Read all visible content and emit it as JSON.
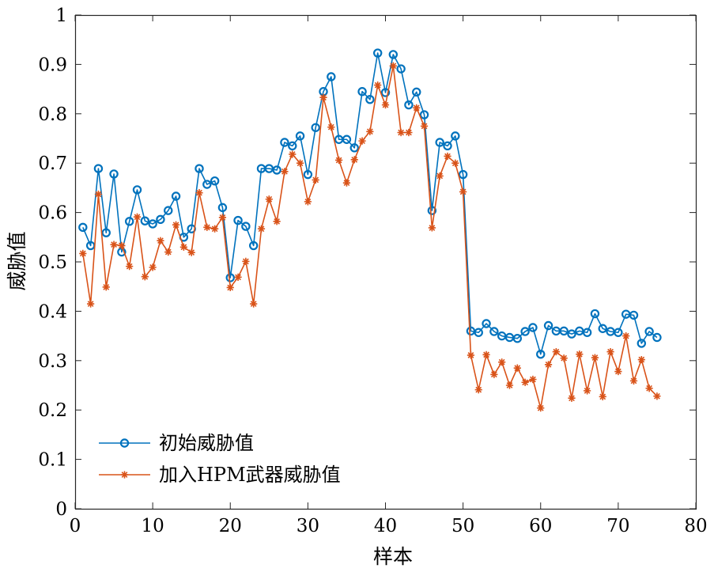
{
  "chart_data": {
    "type": "line",
    "title": "",
    "xlabel": "样本",
    "ylabel": "威胁值",
    "xlim": [
      0,
      80
    ],
    "ylim": [
      0,
      1
    ],
    "xticks": [
      0,
      10,
      20,
      30,
      40,
      50,
      60,
      70,
      80
    ],
    "yticks": [
      0,
      0.1,
      0.2,
      0.3,
      0.4,
      0.5,
      0.6,
      0.7,
      0.8,
      0.9,
      1
    ],
    "xtick_labels": [
      "0",
      "10",
      "20",
      "30",
      "40",
      "50",
      "60",
      "70",
      "80"
    ],
    "ytick_labels": [
      "0",
      "0.1",
      "0.2",
      "0.3",
      "0.4",
      "0.5",
      "0.6",
      "0.7",
      "0.8",
      "0.9",
      "1"
    ],
    "grid": false,
    "legend_position": "bottom-left",
    "x": [
      1,
      2,
      3,
      4,
      5,
      6,
      7,
      8,
      9,
      10,
      11,
      12,
      13,
      14,
      15,
      16,
      17,
      18,
      19,
      20,
      21,
      22,
      23,
      24,
      25,
      26,
      27,
      28,
      29,
      30,
      31,
      32,
      33,
      34,
      35,
      36,
      37,
      38,
      39,
      40,
      41,
      42,
      43,
      44,
      45,
      46,
      47,
      48,
      49,
      50,
      51,
      52,
      53,
      54,
      55,
      56,
      57,
      58,
      59,
      60,
      61,
      62,
      63,
      64,
      65,
      66,
      67,
      68,
      69,
      70,
      71,
      72,
      73,
      74,
      75
    ],
    "series": [
      {
        "name": "初始威胁值",
        "color": "#0072BD",
        "marker": "circle",
        "values": [
          0.57,
          0.533,
          0.689,
          0.559,
          0.678,
          0.52,
          0.582,
          0.646,
          0.583,
          0.577,
          0.586,
          0.604,
          0.633,
          0.55,
          0.567,
          0.689,
          0.657,
          0.664,
          0.61,
          0.468,
          0.584,
          0.572,
          0.533,
          0.689,
          0.689,
          0.686,
          0.742,
          0.735,
          0.755,
          0.677,
          0.772,
          0.845,
          0.875,
          0.748,
          0.748,
          0.731,
          0.845,
          0.829,
          0.923,
          0.843,
          0.92,
          0.891,
          0.818,
          0.844,
          0.798,
          0.604,
          0.742,
          0.735,
          0.755,
          0.677,
          0.36,
          0.357,
          0.375,
          0.359,
          0.35,
          0.347,
          0.345,
          0.359,
          0.367,
          0.313,
          0.371,
          0.36,
          0.36,
          0.354,
          0.36,
          0.357,
          0.395,
          0.365,
          0.359,
          0.357,
          0.394,
          0.392,
          0.335,
          0.359,
          0.347
        ]
      },
      {
        "name": "加入HPM武器威胁值",
        "color": "#D95319",
        "marker": "star",
        "values": [
          0.517,
          0.415,
          0.637,
          0.449,
          0.535,
          0.533,
          0.491,
          0.591,
          0.47,
          0.489,
          0.543,
          0.52,
          0.575,
          0.53,
          0.519,
          0.64,
          0.57,
          0.567,
          0.59,
          0.448,
          0.469,
          0.501,
          0.415,
          0.567,
          0.627,
          0.582,
          0.683,
          0.718,
          0.7,
          0.622,
          0.666,
          0.833,
          0.773,
          0.706,
          0.66,
          0.707,
          0.745,
          0.764,
          0.858,
          0.818,
          0.897,
          0.762,
          0.762,
          0.812,
          0.775,
          0.569,
          0.674,
          0.714,
          0.7,
          0.642,
          0.311,
          0.241,
          0.312,
          0.272,
          0.297,
          0.25,
          0.285,
          0.256,
          0.262,
          0.204,
          0.292,
          0.318,
          0.305,
          0.224,
          0.313,
          0.239,
          0.306,
          0.227,
          0.318,
          0.278,
          0.35,
          0.259,
          0.302,
          0.244,
          0.228
        ]
      }
    ]
  }
}
